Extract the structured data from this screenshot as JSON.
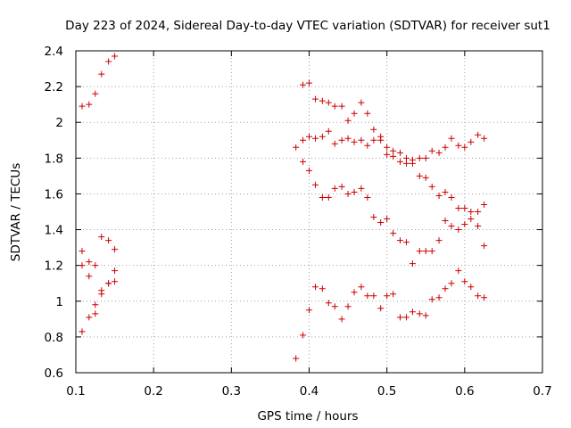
{
  "chart_data": {
    "type": "scatter",
    "title": "Day 223 of 2024, Sidereal Day-to-day VTEC variation (SDTVAR) for receiver sut1",
    "xlabel": "GPS time / hours",
    "ylabel": "SDTVAR / TECUs",
    "xlim": [
      0.1,
      0.7
    ],
    "ylim": [
      0.6,
      2.4
    ],
    "xticks": [
      0.1,
      0.2,
      0.3,
      0.4,
      0.5,
      0.6,
      0.7
    ],
    "yticks": [
      0.6,
      0.8,
      1.0,
      1.2,
      1.4,
      1.6,
      1.8,
      2.0,
      2.2,
      2.4
    ],
    "xtick_labels": [
      "0.1",
      "0.2",
      "0.3",
      "0.4",
      "0.5",
      "0.6",
      "0.7"
    ],
    "ytick_labels": [
      "0.6",
      "0.8",
      "1",
      "1.2",
      "1.4",
      "1.6",
      "1.8",
      "2",
      "2.2",
      "2.4"
    ],
    "grid": true,
    "marker": "+",
    "color": "#cc0000",
    "series": [
      {
        "name": "sut1",
        "points": [
          [
            0.108,
            2.09
          ],
          [
            0.117,
            2.1
          ],
          [
            0.125,
            2.16
          ],
          [
            0.133,
            2.27
          ],
          [
            0.142,
            2.34
          ],
          [
            0.15,
            2.37
          ],
          [
            0.108,
            1.28
          ],
          [
            0.108,
            1.2
          ],
          [
            0.108,
            0.83
          ],
          [
            0.117,
            1.22
          ],
          [
            0.117,
            1.14
          ],
          [
            0.117,
            0.91
          ],
          [
            0.125,
            1.2
          ],
          [
            0.125,
            0.98
          ],
          [
            0.125,
            0.93
          ],
          [
            0.133,
            1.36
          ],
          [
            0.133,
            1.06
          ],
          [
            0.133,
            1.04
          ],
          [
            0.142,
            1.34
          ],
          [
            0.142,
            1.1
          ],
          [
            0.142,
            1.1
          ],
          [
            0.15,
            1.29
          ],
          [
            0.15,
            1.17
          ],
          [
            0.15,
            1.11
          ],
          [
            0.383,
            1.86
          ],
          [
            0.383,
            0.68
          ],
          [
            0.392,
            2.21
          ],
          [
            0.392,
            1.9
          ],
          [
            0.392,
            1.78
          ],
          [
            0.392,
            0.81
          ],
          [
            0.4,
            2.22
          ],
          [
            0.4,
            1.92
          ],
          [
            0.4,
            1.73
          ],
          [
            0.4,
            0.95
          ],
          [
            0.408,
            2.13
          ],
          [
            0.408,
            1.91
          ],
          [
            0.408,
            1.65
          ],
          [
            0.408,
            1.08
          ],
          [
            0.417,
            2.12
          ],
          [
            0.417,
            1.92
          ],
          [
            0.417,
            1.58
          ],
          [
            0.417,
            1.07
          ],
          [
            0.425,
            2.11
          ],
          [
            0.425,
            1.95
          ],
          [
            0.425,
            1.58
          ],
          [
            0.425,
            0.99
          ],
          [
            0.433,
            2.09
          ],
          [
            0.433,
            1.88
          ],
          [
            0.433,
            1.63
          ],
          [
            0.433,
            0.97
          ],
          [
            0.442,
            2.09
          ],
          [
            0.442,
            1.9
          ],
          [
            0.442,
            1.64
          ],
          [
            0.442,
            0.9
          ],
          [
            0.45,
            2.01
          ],
          [
            0.45,
            1.91
          ],
          [
            0.45,
            1.6
          ],
          [
            0.45,
            0.97
          ],
          [
            0.458,
            2.05
          ],
          [
            0.458,
            1.89
          ],
          [
            0.458,
            1.61
          ],
          [
            0.458,
            1.05
          ],
          [
            0.467,
            2.11
          ],
          [
            0.467,
            1.9
          ],
          [
            0.467,
            1.63
          ],
          [
            0.467,
            1.08
          ],
          [
            0.475,
            2.05
          ],
          [
            0.475,
            1.87
          ],
          [
            0.475,
            1.58
          ],
          [
            0.475,
            1.03
          ],
          [
            0.483,
            1.96
          ],
          [
            0.483,
            1.9
          ],
          [
            0.483,
            1.47
          ],
          [
            0.483,
            1.03
          ],
          [
            0.492,
            1.92
          ],
          [
            0.492,
            1.9
          ],
          [
            0.492,
            1.44
          ],
          [
            0.492,
            0.96
          ],
          [
            0.5,
            1.86
          ],
          [
            0.5,
            1.82
          ],
          [
            0.5,
            1.46
          ],
          [
            0.5,
            1.03
          ],
          [
            0.508,
            1.84
          ],
          [
            0.508,
            1.81
          ],
          [
            0.508,
            1.38
          ],
          [
            0.508,
            1.04
          ],
          [
            0.517,
            1.83
          ],
          [
            0.517,
            1.78
          ],
          [
            0.517,
            1.34
          ],
          [
            0.517,
            0.91
          ],
          [
            0.525,
            1.8
          ],
          [
            0.525,
            1.77
          ],
          [
            0.525,
            1.33
          ],
          [
            0.525,
            0.91
          ],
          [
            0.533,
            1.79
          ],
          [
            0.533,
            1.77
          ],
          [
            0.533,
            1.21
          ],
          [
            0.533,
            0.94
          ],
          [
            0.542,
            1.8
          ],
          [
            0.542,
            1.7
          ],
          [
            0.542,
            1.28
          ],
          [
            0.542,
            0.93
          ],
          [
            0.55,
            1.8
          ],
          [
            0.55,
            1.69
          ],
          [
            0.55,
            1.28
          ],
          [
            0.55,
            0.92
          ],
          [
            0.558,
            1.84
          ],
          [
            0.558,
            1.64
          ],
          [
            0.558,
            1.28
          ],
          [
            0.558,
            1.01
          ],
          [
            0.567,
            1.83
          ],
          [
            0.567,
            1.59
          ],
          [
            0.567,
            1.34
          ],
          [
            0.567,
            1.02
          ],
          [
            0.575,
            1.86
          ],
          [
            0.575,
            1.61
          ],
          [
            0.575,
            1.45
          ],
          [
            0.575,
            1.07
          ],
          [
            0.583,
            1.91
          ],
          [
            0.583,
            1.58
          ],
          [
            0.583,
            1.42
          ],
          [
            0.583,
            1.1
          ],
          [
            0.592,
            1.87
          ],
          [
            0.592,
            1.52
          ],
          [
            0.592,
            1.4
          ],
          [
            0.592,
            1.17
          ],
          [
            0.6,
            1.86
          ],
          [
            0.6,
            1.52
          ],
          [
            0.6,
            1.43
          ],
          [
            0.6,
            1.11
          ],
          [
            0.608,
            1.89
          ],
          [
            0.608,
            1.5
          ],
          [
            0.608,
            1.46
          ],
          [
            0.608,
            1.08
          ],
          [
            0.617,
            1.93
          ],
          [
            0.617,
            1.5
          ],
          [
            0.617,
            1.42
          ],
          [
            0.617,
            1.03
          ],
          [
            0.625,
            1.91
          ],
          [
            0.625,
            1.54
          ],
          [
            0.625,
            1.31
          ],
          [
            0.625,
            1.02
          ]
        ]
      }
    ]
  }
}
